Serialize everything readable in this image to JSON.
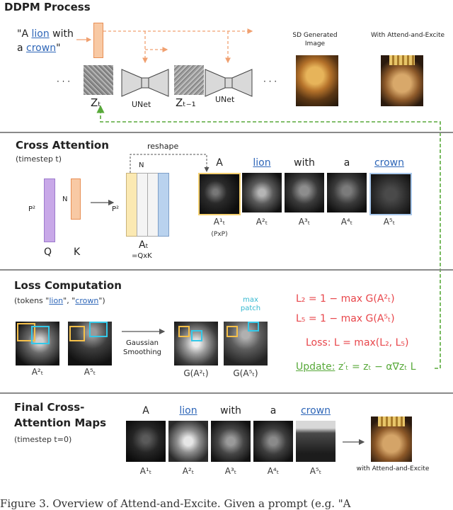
{
  "ddpm": {
    "title": "DDPM Process",
    "prompt_quote_open": "\"A ",
    "prompt_word_lion": "lion",
    "prompt_with": " with",
    "prompt_a": "a ",
    "prompt_word_crown": "crown",
    "prompt_quote_close": "\"",
    "ellipsis_left": "· · ·",
    "ellipsis_right": "· · ·",
    "z_t": "Zₜ",
    "z_t1": "Zₜ₋₁",
    "unet1": "UNet",
    "unet2": "UNet",
    "sd_label": "SD Generated Image",
    "ae_label": "With Attend-and-Excite"
  },
  "cross": {
    "title": "Cross Attention",
    "subtitle": "(timestep t)",
    "reshape": "reshape",
    "p2_left": "P²",
    "n_left": "N",
    "n_top": "N",
    "p2_right": "P²",
    "q": "Q",
    "k": "K",
    "at": "Aₜ",
    "at_eq": "=QxK",
    "words": [
      "A",
      "lion",
      "with",
      "a",
      "crown"
    ],
    "labels": [
      "A¹ₜ",
      "A²ₜ",
      "A³ₜ",
      "A⁴ₜ",
      "A⁵ₜ"
    ],
    "pxp": "(PxP)"
  },
  "loss": {
    "title": "Loss Computation",
    "subtitle_prefix": "(tokens \"",
    "subtitle_lion": "lion",
    "subtitle_mid": "\", \"",
    "subtitle_crown": "crown",
    "subtitle_suffix": "\")",
    "max_patch": "max patch",
    "gaussian": "Gaussian Smoothing",
    "a2": "A²ₜ",
    "a5": "A⁵ₜ",
    "g2": "G(A²ₜ)",
    "g5": "G(A⁵ₜ)",
    "l2": "L₂ = 1 − max G(A²ₜ)",
    "l5": "L₅ = 1 − max G(A⁵ₜ)",
    "loss_eq": "Loss: L = max(L₂, L₅)",
    "update_word": "Update:",
    "update_eq": " z′ₜ = zₜ − α∇zₜ L"
  },
  "final": {
    "title_line1": "Final Cross-",
    "title_line2": "Attention Maps",
    "subtitle": "(timestep t=0)",
    "words": [
      "A",
      "lion",
      "with",
      "a",
      "crown"
    ],
    "labels": [
      "A¹ₜ",
      "A²ₜ",
      "A³ₜ",
      "A⁴ₜ",
      "A⁵ₜ"
    ],
    "with_label": "with Attend-and-Excite"
  },
  "caption": "Figure 3. Overview of Attend-and-Excite. Given a prompt (e.g. \"A"
}
